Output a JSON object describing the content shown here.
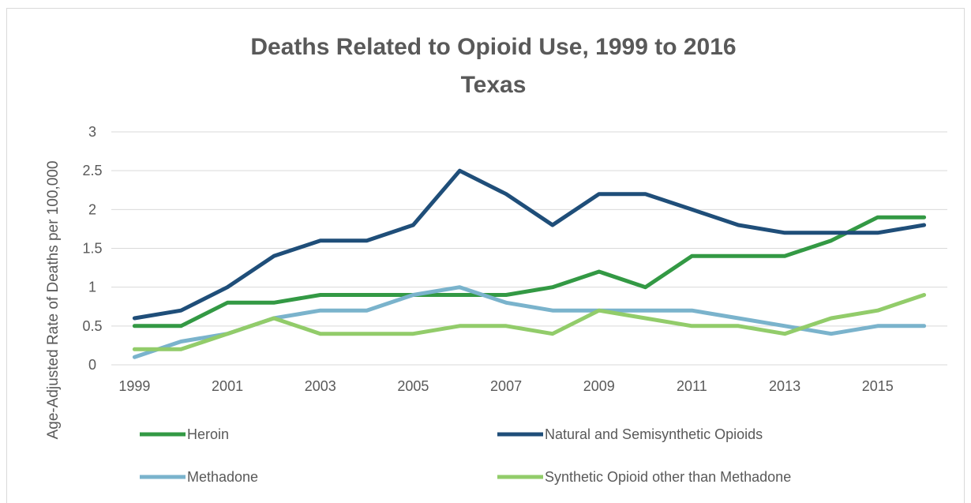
{
  "chart_data": {
    "type": "line",
    "title": "Deaths Related to Opioid Use, 1999 to 2016",
    "subtitle": "Texas",
    "xlabel": "",
    "ylabel": "Age-Adjusted Rate of Deaths per 100,000",
    "x": [
      1999,
      2000,
      2001,
      2002,
      2003,
      2004,
      2005,
      2006,
      2007,
      2008,
      2009,
      2010,
      2011,
      2012,
      2013,
      2014,
      2015,
      2016
    ],
    "x_tick_labels": [
      "1999",
      "2001",
      "2003",
      "2005",
      "2007",
      "2009",
      "2011",
      "2013",
      "2015"
    ],
    "y_tick_labels": [
      "0",
      "0.5",
      "1",
      "1.5",
      "2",
      "2.5",
      "3"
    ],
    "ylim": [
      0,
      3
    ],
    "grid": "horizontal",
    "legend_position": "bottom",
    "series": [
      {
        "name": "Heroin",
        "color": "#339944",
        "values": [
          0.5,
          0.5,
          0.8,
          0.8,
          0.9,
          0.9,
          0.9,
          0.9,
          0.9,
          1.0,
          1.2,
          1.0,
          1.4,
          1.4,
          1.4,
          1.6,
          1.9,
          1.9
        ]
      },
      {
        "name": "Natural and Semisynthetic Opioids",
        "color": "#1f4e79",
        "values": [
          0.6,
          0.7,
          1.0,
          1.4,
          1.6,
          1.6,
          1.8,
          2.5,
          2.2,
          1.8,
          2.2,
          2.2,
          2.0,
          1.8,
          1.7,
          1.7,
          1.7,
          1.8
        ]
      },
      {
        "name": "Methadone",
        "color": "#7ab3cc",
        "values": [
          0.1,
          0.3,
          0.4,
          0.6,
          0.7,
          0.7,
          0.9,
          1.0,
          0.8,
          0.7,
          0.7,
          0.7,
          0.7,
          0.6,
          0.5,
          0.4,
          0.5,
          0.5
        ]
      },
      {
        "name": "Synthetic Opioid other than Methadone",
        "color": "#92cc6a",
        "values": [
          0.2,
          0.2,
          0.4,
          0.6,
          0.4,
          0.4,
          0.4,
          0.5,
          0.5,
          0.4,
          0.7,
          0.6,
          0.5,
          0.5,
          0.4,
          0.6,
          0.7,
          0.9
        ]
      }
    ]
  }
}
